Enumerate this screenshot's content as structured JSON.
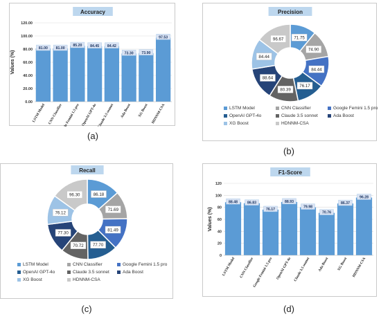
{
  "labels": {
    "a": "(a)",
    "b": "(b)",
    "c": "(c)",
    "d": "(d)"
  },
  "models": [
    "LSTM Model",
    "CNN Classifier",
    "Google Femini 1.5 pro",
    "OpenAI GPT-4o",
    "Claude 3.5 sonnet",
    "Ada Boost",
    "XG Boost",
    "HDNNM-CSA"
  ],
  "colors": {
    "bar": "#5b9bd5",
    "title_bg": "#bdd7ee",
    "data_label_bg": "#dae3f3",
    "slices": [
      "#5b9bd5",
      "#a5a5a5",
      "#4472c4",
      "#255e91",
      "#636363",
      "#264478",
      "#9dc3e6",
      "#c9c9c9"
    ]
  },
  "chart_data": [
    {
      "type": "bar",
      "title": "Accuracy",
      "ylabel": "Values (%)",
      "xlabel": "",
      "categories": [
        "LSTM Model",
        "CNN Classifier",
        "Google Femini 1.5 pro",
        "OpenAI GPT-4o",
        "Claude 3.5 sonnet",
        "Ada Boost",
        "XG Boost",
        "HDNNM-CSA"
      ],
      "values": [
        81.0,
        81.0,
        85.2,
        84.45,
        84.42,
        73.3,
        73.9,
        97.53
      ],
      "data_labels": [
        "81.00",
        "81.00",
        "85.20",
        "84.45",
        "84.42",
        "73.30",
        "73.90",
        "97.53"
      ],
      "ylim": [
        0,
        120
      ],
      "yticks": [
        "0.00",
        "20.00",
        "40.00",
        "60.00",
        "80.00",
        "100.00",
        "120.00"
      ],
      "grid": true
    },
    {
      "type": "pie",
      "title": "Precision",
      "categories": [
        "LSTM Model",
        "CNN Classifier",
        "Google Femini 1.5 pro",
        "OpenAI GPT-4o",
        "Claude 3.5 sonnet",
        "Ada Boost",
        "XG Boost",
        "HDNNM-CSA"
      ],
      "values": [
        71.75,
        74.9,
        84.44,
        76.17,
        80.39,
        88.64,
        84.44,
        96.67
      ],
      "data_labels": [
        "71.75",
        "74.90",
        "84.44",
        "76.17",
        "80.39",
        "88.64",
        "84.44",
        "96.67"
      ],
      "legend_position": "bottom"
    },
    {
      "type": "pie",
      "title": "Recall",
      "categories": [
        "LSTM Model",
        "CNN Classifier",
        "Google Femini 1.5 pro",
        "OpenAI GPT-4o",
        "Claude 3.5 sonnet",
        "Ada Boost",
        "XG Boost",
        "HDNNM-CSA"
      ],
      "values": [
        86.18,
        71.69,
        81.49,
        77.7,
        70.72,
        77.3,
        76.12,
        96.3
      ],
      "data_labels": [
        "86.18",
        "71.69",
        "81.49",
        "77.70",
        "70.72",
        "77.30",
        "76.12",
        "96.30"
      ],
      "legend_position": "bottom"
    },
    {
      "type": "bar",
      "title": "F1-Score",
      "ylabel": "Values (%)",
      "xlabel": "",
      "categories": [
        "LSTM Model",
        "CNN Classifier",
        "Google Femini 1.5 pro",
        "OpenAI GPT-4o",
        "Claude 3.5 sonnet",
        "Ada Boost",
        "XG Boost",
        "HDNNM-CSA"
      ],
      "values": [
        88.48,
        86.83,
        76.17,
        88.93,
        79.98,
        70.76,
        86.37,
        96.28
      ],
      "data_labels": [
        "88.48",
        "86.83",
        "76.17",
        "88.93",
        "79.98",
        "70.76",
        "86.37",
        "96.28"
      ],
      "ylim": [
        0,
        120
      ],
      "yticks": [
        "0",
        "20",
        "40",
        "60",
        "80",
        "100",
        "120"
      ],
      "grid": true
    }
  ]
}
